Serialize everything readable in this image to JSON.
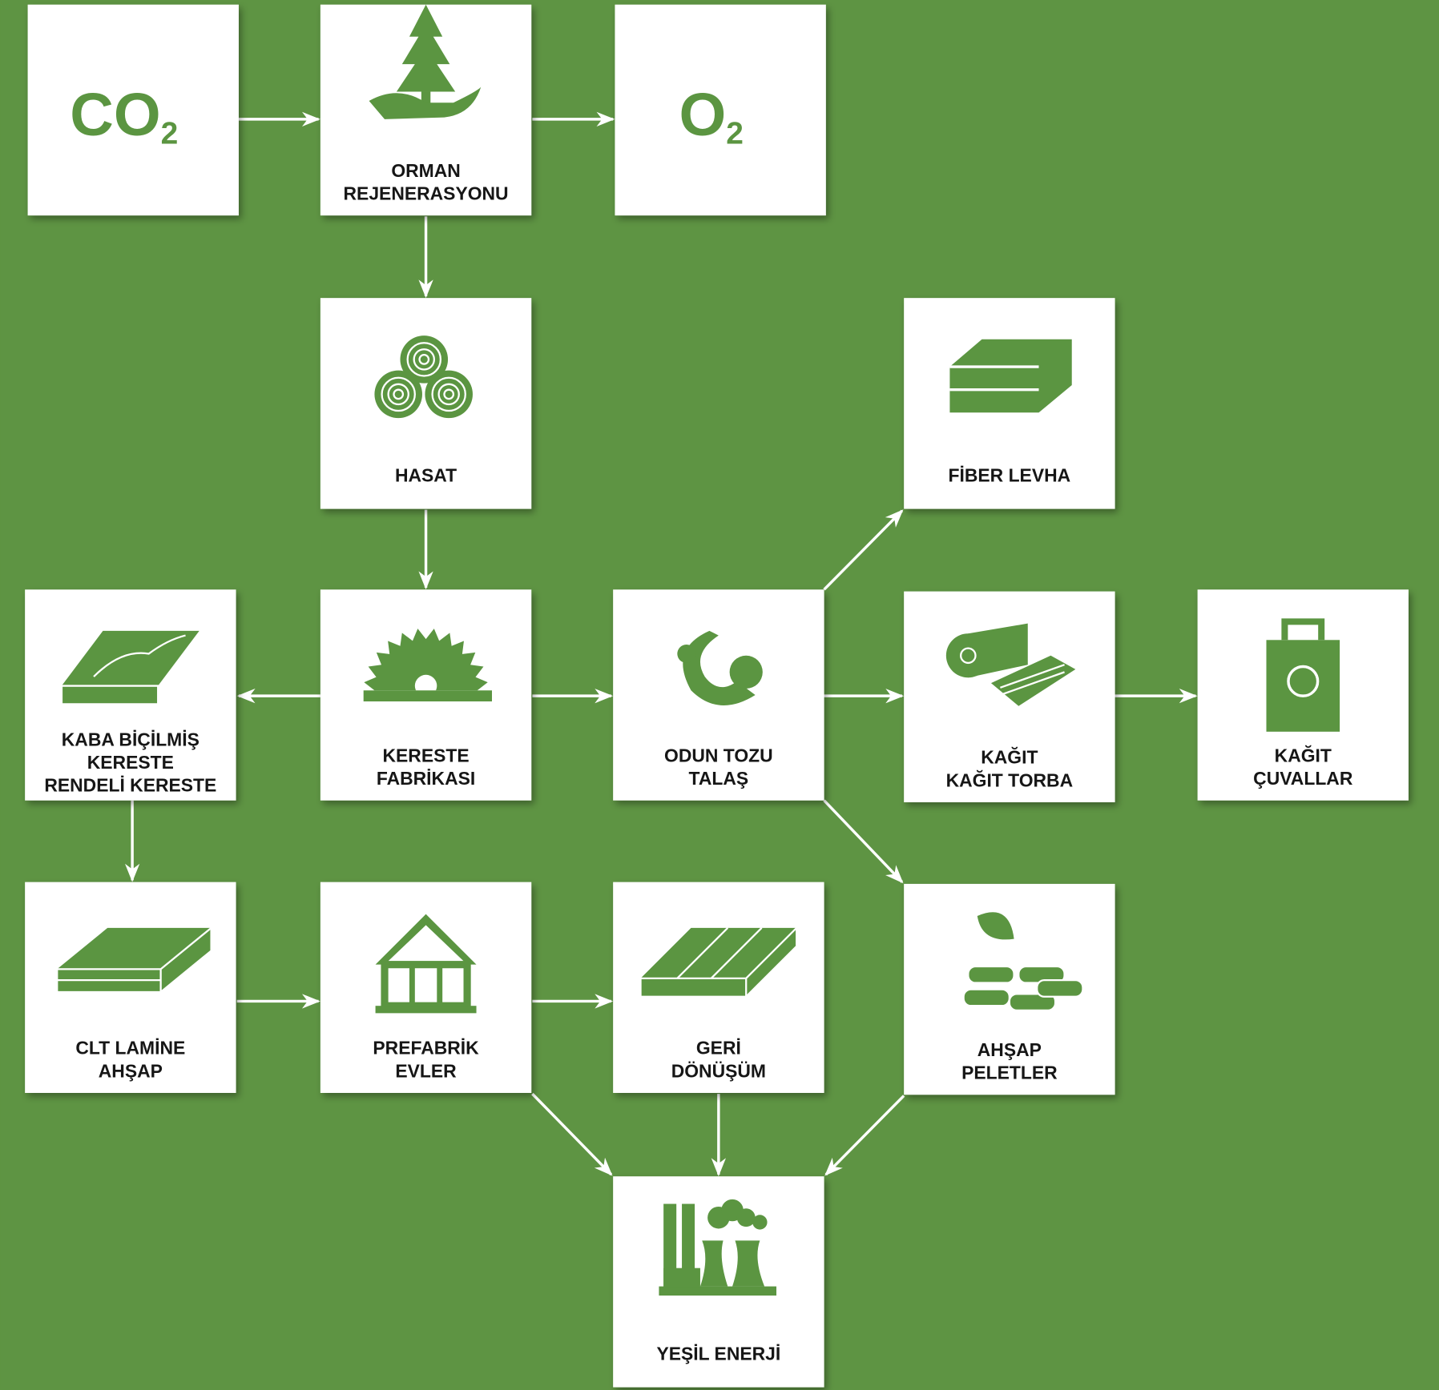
{
  "nodes": [
    {
      "symbol": "CO",
      "subscript": "2"
    },
    {
      "lines": [
        "ORMAN",
        "REJENERASYONU"
      ]
    },
    {
      "symbol": "O",
      "subscript": "2"
    },
    {
      "lines": [
        "HASAT"
      ]
    },
    {
      "lines": [
        "FİBER LEVHA"
      ]
    },
    {
      "lines": [
        "KABA BİÇİLMİŞ",
        "KERESTE",
        "RENDELİ KERESTE"
      ]
    },
    {
      "lines": [
        "KERESTE",
        "FABRİKASI"
      ]
    },
    {
      "lines": [
        "ODUN TOZU",
        "TALAŞ"
      ]
    },
    {
      "lines": [
        "KAĞIT",
        "KAĞIT TORBA"
      ]
    },
    {
      "lines": [
        "KAĞIT",
        "ÇUVALLAR"
      ]
    },
    {
      "lines": [
        "CLT LAMİNE",
        "AHŞAP"
      ]
    },
    {
      "lines": [
        "PREFABRİK",
        "EVLER"
      ]
    },
    {
      "lines": [
        "GERİ",
        "DÖNÜŞÜM"
      ]
    },
    {
      "lines": [
        "AHŞAP",
        "PELETLER"
      ]
    },
    {
      "lines": [
        "YEŞİL ENERJİ"
      ]
    }
  ]
}
